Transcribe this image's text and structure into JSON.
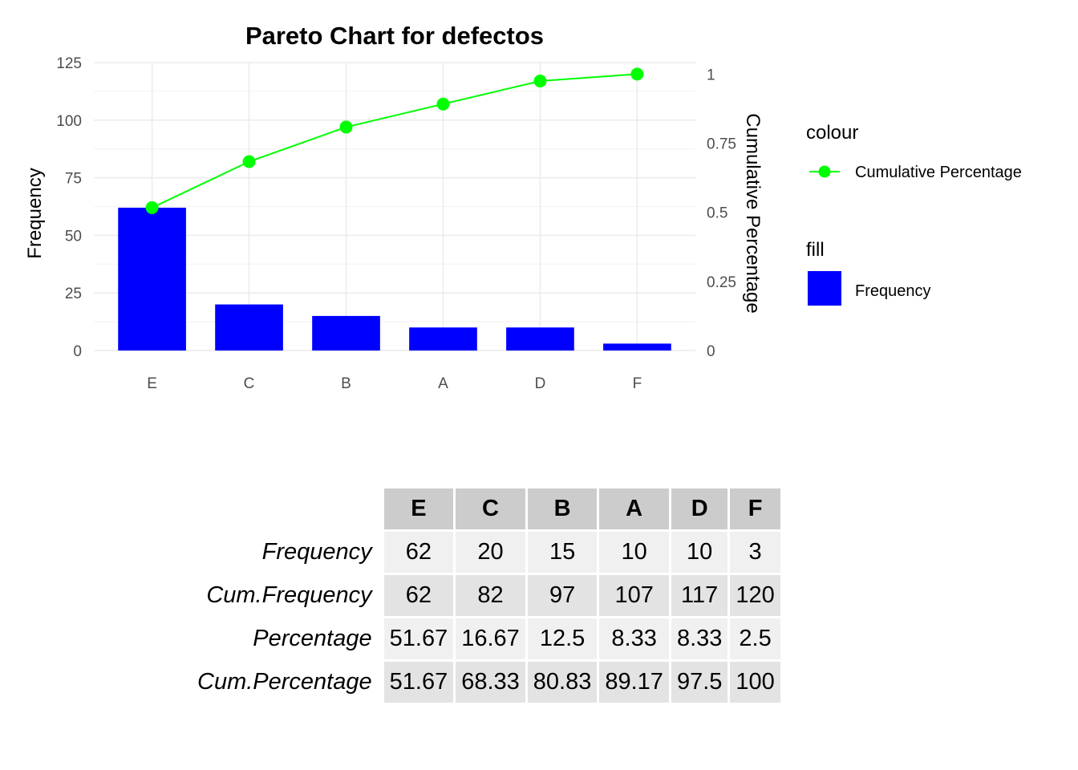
{
  "chart_data": {
    "type": "bar",
    "title": "Pareto Chart for defectos",
    "categories": [
      "E",
      "C",
      "B",
      "A",
      "D",
      "F"
    ],
    "series": [
      {
        "name": "Frequency",
        "kind": "bar",
        "axis": "left",
        "values": [
          62,
          20,
          15,
          10,
          10,
          3
        ],
        "color": "#0000ff"
      },
      {
        "name": "Cumulative Percentage",
        "kind": "line",
        "axis": "right",
        "values": [
          0.5167,
          0.6833,
          0.8083,
          0.8917,
          0.975,
          1.0
        ],
        "color": "#00ff00"
      }
    ],
    "ylabel": "Frequency",
    "y2label": "Cumulative Percentage",
    "ylim": [
      0,
      125
    ],
    "yticks": [
      0,
      25,
      50,
      75,
      100,
      125
    ],
    "y2lim": [
      0,
      1.0417
    ],
    "y2ticks": [
      0,
      0.25,
      0.5,
      0.75,
      1
    ],
    "y2tick_labels": [
      "0",
      "0.25",
      "0.5",
      "0.75",
      "1"
    ],
    "grid": true,
    "legend": {
      "placement": "right",
      "groups": [
        {
          "title": "colour",
          "label": "Cumulative Percentage",
          "key": "line-point",
          "color": "#00ff00"
        },
        {
          "title": "fill",
          "label": "Frequency",
          "key": "box",
          "color": "#0000ff"
        }
      ]
    }
  },
  "table": {
    "columns": [
      "E",
      "C",
      "B",
      "A",
      "D",
      "F"
    ],
    "rows": [
      {
        "label": "Frequency",
        "values": [
          "62",
          "20",
          "15",
          "10",
          "10",
          "3"
        ]
      },
      {
        "label": "Cum.Frequency",
        "values": [
          "62",
          "82",
          "97",
          "107",
          "117",
          "120"
        ]
      },
      {
        "label": "Percentage",
        "values": [
          "51.67",
          "16.67",
          "12.5",
          "8.33",
          "8.33",
          "2.5"
        ]
      },
      {
        "label": "Cum.Percentage",
        "values": [
          "51.67",
          "68.33",
          "80.83",
          "89.17",
          "97.5",
          "100"
        ]
      }
    ]
  }
}
